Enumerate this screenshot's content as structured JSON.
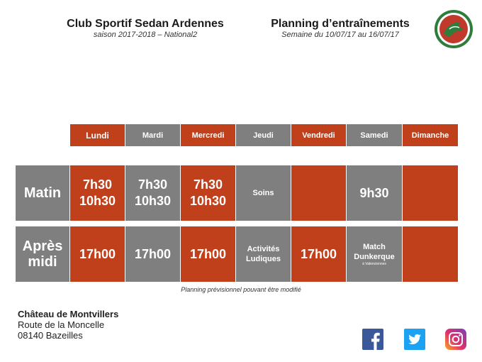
{
  "header": {
    "club_title": "Club Sportif Sedan Ardennes",
    "club_subtitle": "saison 2017-2018 – National2",
    "planning_title": "Planning d’entraînements",
    "planning_subtitle": "Semaine du 10/07/17 au 16/07/17"
  },
  "colors": {
    "accent_red": "#c0401b",
    "grey": "#7f7f7f",
    "logo_green": "#2e7d3a"
  },
  "days": [
    "Lundi",
    "Mardi",
    "Mercredi",
    "Jeudi",
    "Vendredi",
    "Samedi",
    "Dimanche"
  ],
  "rows": {
    "matin": {
      "label": "Matin",
      "cells": [
        {
          "l1": "7h30",
          "l2": "10h30"
        },
        {
          "l1": "7h30",
          "l2": "10h30"
        },
        {
          "l1": "7h30",
          "l2": "10h30"
        },
        {
          "l1": "Soins"
        },
        {},
        {
          "l1": "9h30"
        },
        {}
      ]
    },
    "apres_midi": {
      "label_l1": "Après",
      "label_l2": "midi",
      "cells": [
        {
          "l1": "17h00"
        },
        {
          "l1": "17h00"
        },
        {
          "l1": "17h00"
        },
        {
          "l1": "Activités",
          "l2": "Ludiques"
        },
        {
          "l1": "17h00"
        },
        {
          "l1": "Match",
          "l2": "Dunkerque",
          "l3": "à Valenciennes"
        },
        {}
      ]
    }
  },
  "note": "Planning prévisionnel pouvant être modifié",
  "address": {
    "name": "Château de Montvillers",
    "line1": "Route de la Moncelle",
    "line2": "08140 Bazeilles"
  },
  "social_icons": [
    "facebook-icon",
    "twitter-icon",
    "instagram-icon"
  ]
}
